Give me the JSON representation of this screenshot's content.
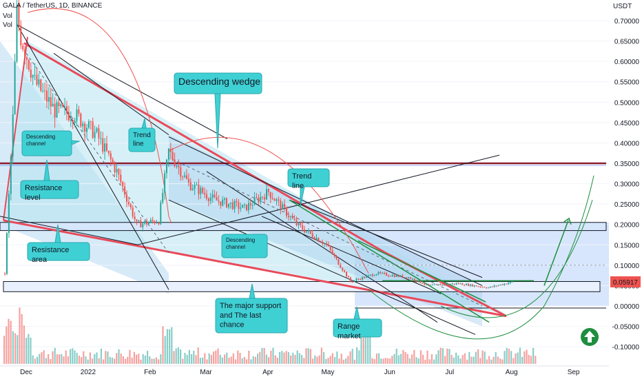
{
  "header": {
    "symbol": "GALA / TetherUS, 1D, BINANCE",
    "vol1": "Vol",
    "vol2": "Vol"
  },
  "price_axis": {
    "unit": "USDT",
    "ticks": [
      "0.70000",
      "0.65000",
      "0.60000",
      "0.55000",
      "0.50000",
      "0.45000",
      "0.40000",
      "0.35000",
      "0.30000",
      "0.25000",
      "0.20000",
      "0.15000",
      "0.10000",
      "0.05000",
      "0.00000",
      "-0.05000",
      "-0.10000"
    ],
    "last_price": "0.05917"
  },
  "time_axis": {
    "ticks": [
      "Dec",
      "2022",
      "Feb",
      "Mar",
      "Apr",
      "May",
      "Jun",
      "Jul",
      "Aug",
      "Sep"
    ]
  },
  "annotations": {
    "descending_wedge": "Descending wedge",
    "descending_channel_1": "Descending channel",
    "trend_line_1": "Trend line",
    "trend_line_2": "Trend line",
    "resistance_level": "Resistance level",
    "resistance_area": "Resistance area",
    "descending_channel_2": "Descending channel",
    "major_support": "The major support and The last chance",
    "range_market": "Range market"
  },
  "colors": {
    "up": "#26a69a",
    "down": "#ef5350",
    "callout": "#3fd0d4",
    "wedge": "#e84a5a",
    "arrow": "#1e8e3e"
  },
  "chart_data": {
    "type": "candlestick",
    "title": "GALA / TetherUS, 1D, BINANCE",
    "ylabel": "USDT",
    "ylim": [
      -0.12,
      0.74
    ],
    "x_ticks": [
      "Dec",
      "2022",
      "Feb",
      "Mar",
      "Apr",
      "May",
      "Jun",
      "Jul",
      "Aug",
      "Sep"
    ],
    "close_path": [
      {
        "date": "2021-11-20",
        "close": 0.08
      },
      {
        "date": "2021-11-24",
        "close": 0.46
      },
      {
        "date": "2021-11-26",
        "close": 0.72
      },
      {
        "date": "2021-11-28",
        "close": 0.66
      },
      {
        "date": "2021-12-05",
        "close": 0.55
      },
      {
        "date": "2021-12-15",
        "close": 0.48
      },
      {
        "date": "2021-12-25",
        "close": 0.47
      },
      {
        "date": "2022-01-05",
        "close": 0.42
      },
      {
        "date": "2022-01-15",
        "close": 0.33
      },
      {
        "date": "2022-01-25",
        "close": 0.2
      },
      {
        "date": "2022-02-05",
        "close": 0.21
      },
      {
        "date": "2022-02-10",
        "close": 0.38
      },
      {
        "date": "2022-02-20",
        "close": 0.3
      },
      {
        "date": "2022-03-05",
        "close": 0.26
      },
      {
        "date": "2022-03-20",
        "close": 0.24
      },
      {
        "date": "2022-04-01",
        "close": 0.28
      },
      {
        "date": "2022-04-15",
        "close": 0.2
      },
      {
        "date": "2022-04-30",
        "close": 0.15
      },
      {
        "date": "2022-05-12",
        "close": 0.06
      },
      {
        "date": "2022-05-25",
        "close": 0.08
      },
      {
        "date": "2022-06-10",
        "close": 0.07
      },
      {
        "date": "2022-06-20",
        "close": 0.05
      },
      {
        "date": "2022-07-05",
        "close": 0.055
      },
      {
        "date": "2022-07-20",
        "close": 0.045
      },
      {
        "date": "2022-08-01",
        "close": 0.059
      }
    ],
    "horizontal_levels": [
      {
        "name": "Resistance level",
        "value": 0.35
      },
      {
        "name": "Resistance area",
        "from": 0.185,
        "to": 0.205
      },
      {
        "name": "The major support",
        "from": 0.035,
        "to": 0.06
      }
    ],
    "last_price": 0.05917
  }
}
